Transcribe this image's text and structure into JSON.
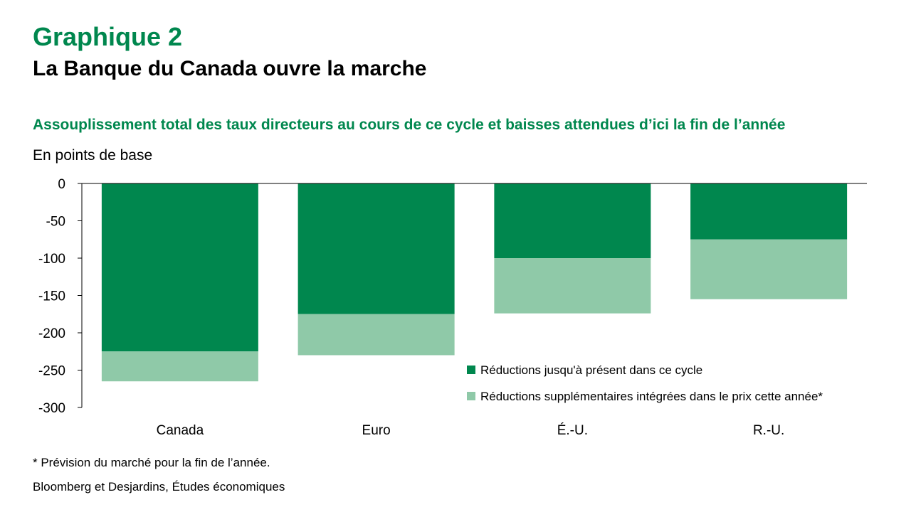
{
  "header": {
    "chart_number": "Graphique 2",
    "title": "La Banque du Canada ouvre la marche",
    "subtitle": "Assouplissement total des taux directeurs au cours de ce cycle et baisses attendues d’ici la fin de l’année",
    "unit": "En points de base"
  },
  "footer": {
    "note": "* Prévision du marché pour la fin de l’année.",
    "source": "Bloomberg et Desjardins, Études économiques"
  },
  "colors": {
    "accent": "#00874e",
    "series_dark": "#00874e",
    "series_light": "#8fc9a8"
  },
  "chart_data": {
    "type": "bar",
    "stacked": true,
    "categories": [
      "Canada",
      "Euro",
      "É.-U.",
      "R.-U."
    ],
    "series": [
      {
        "name": "Réductions jusqu'à présent dans ce cycle",
        "values": [
          -225,
          -175,
          -100,
          -75
        ],
        "color": "#00874e"
      },
      {
        "name": "Réductions supplémentaires intégrées dans le prix cette année*",
        "values": [
          -40,
          -55,
          -74,
          -80
        ],
        "color": "#8fc9a8"
      }
    ],
    "ylim": [
      -300,
      0
    ],
    "yticks": [
      0,
      -50,
      -100,
      -150,
      -200,
      -250,
      -300
    ],
    "grid": false,
    "legend_position": "bottom-right"
  }
}
